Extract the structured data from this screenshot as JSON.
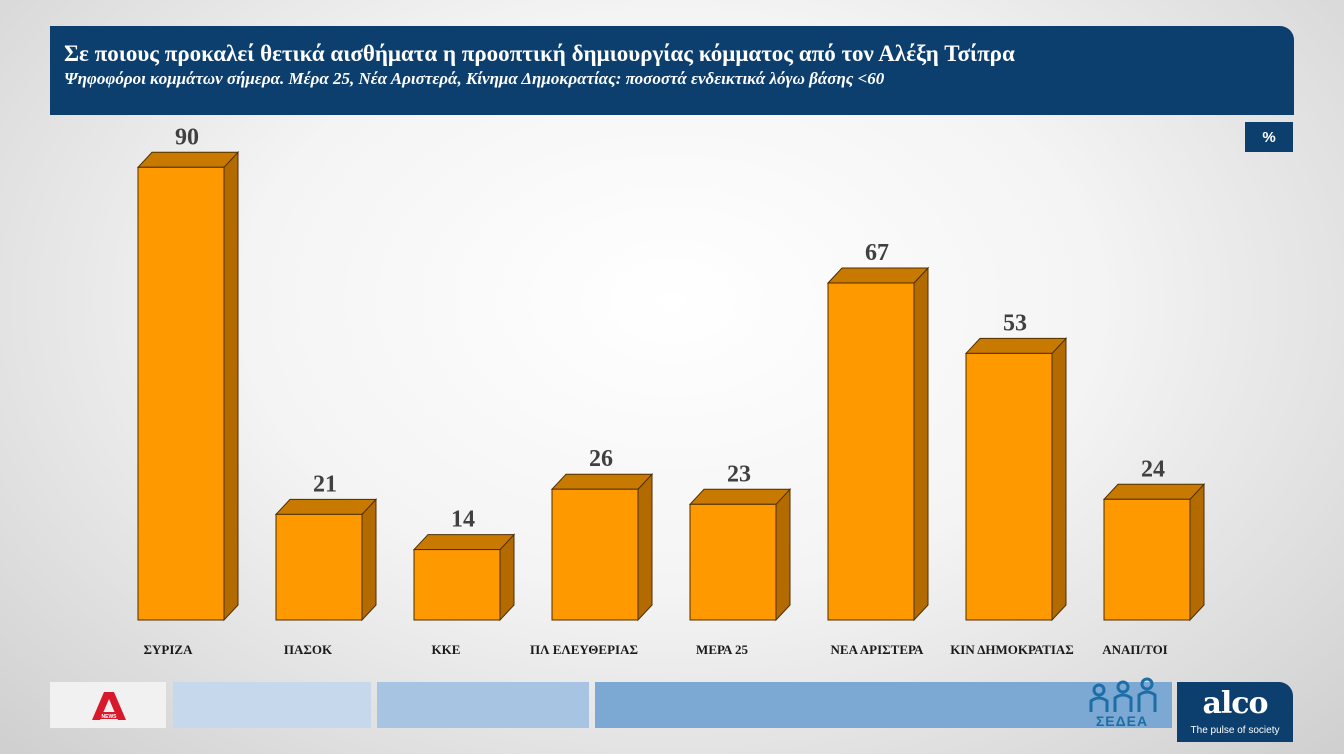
{
  "header": {
    "title": "Σε ποιους προκαλεί θετικά αισθήματα η προοπτική δημιουργίας κόμματος από τον Αλέξη Τσίπρα",
    "subtitle": "Ψηφοφόροι κομμάτων σήμερα. Μέρα 25, Νέα Αριστερά, Κίνημα Δημοκρατίας: ποσοστά ενδεικτικά λόγω βάσης <60"
  },
  "unit_badge": "%",
  "chart_data": {
    "type": "bar",
    "categories": [
      "ΣΥΡΙΖΑ",
      "ΠΑΣΟΚ",
      "ΚΚΕ",
      "ΠΛ ΕΛΕΥΘΕΡΙΑΣ",
      "ΜΕΡΑ 25",
      "ΝΕΑ ΑΡΙΣΤΕΡΑ",
      "ΚΙΝ ΔΗΜΟΚΡΑΤΙΑΣ",
      "ΑΝΑΠ/ΤΟΙ"
    ],
    "values": [
      90,
      21,
      14,
      26,
      23,
      67,
      53,
      24
    ],
    "ylim": [
      0,
      100
    ],
    "grid": false,
    "legend": "none",
    "colors": {
      "front": "#ff9900",
      "side": "#b36b00",
      "top": "#c87a00",
      "edge": "#4d2e00"
    }
  },
  "footer": {
    "logo_left": "alpha-news-logo",
    "logo_sedea": "ΣΕΔΕΑ",
    "brand": "alco",
    "tagline": "The pulse of society"
  }
}
